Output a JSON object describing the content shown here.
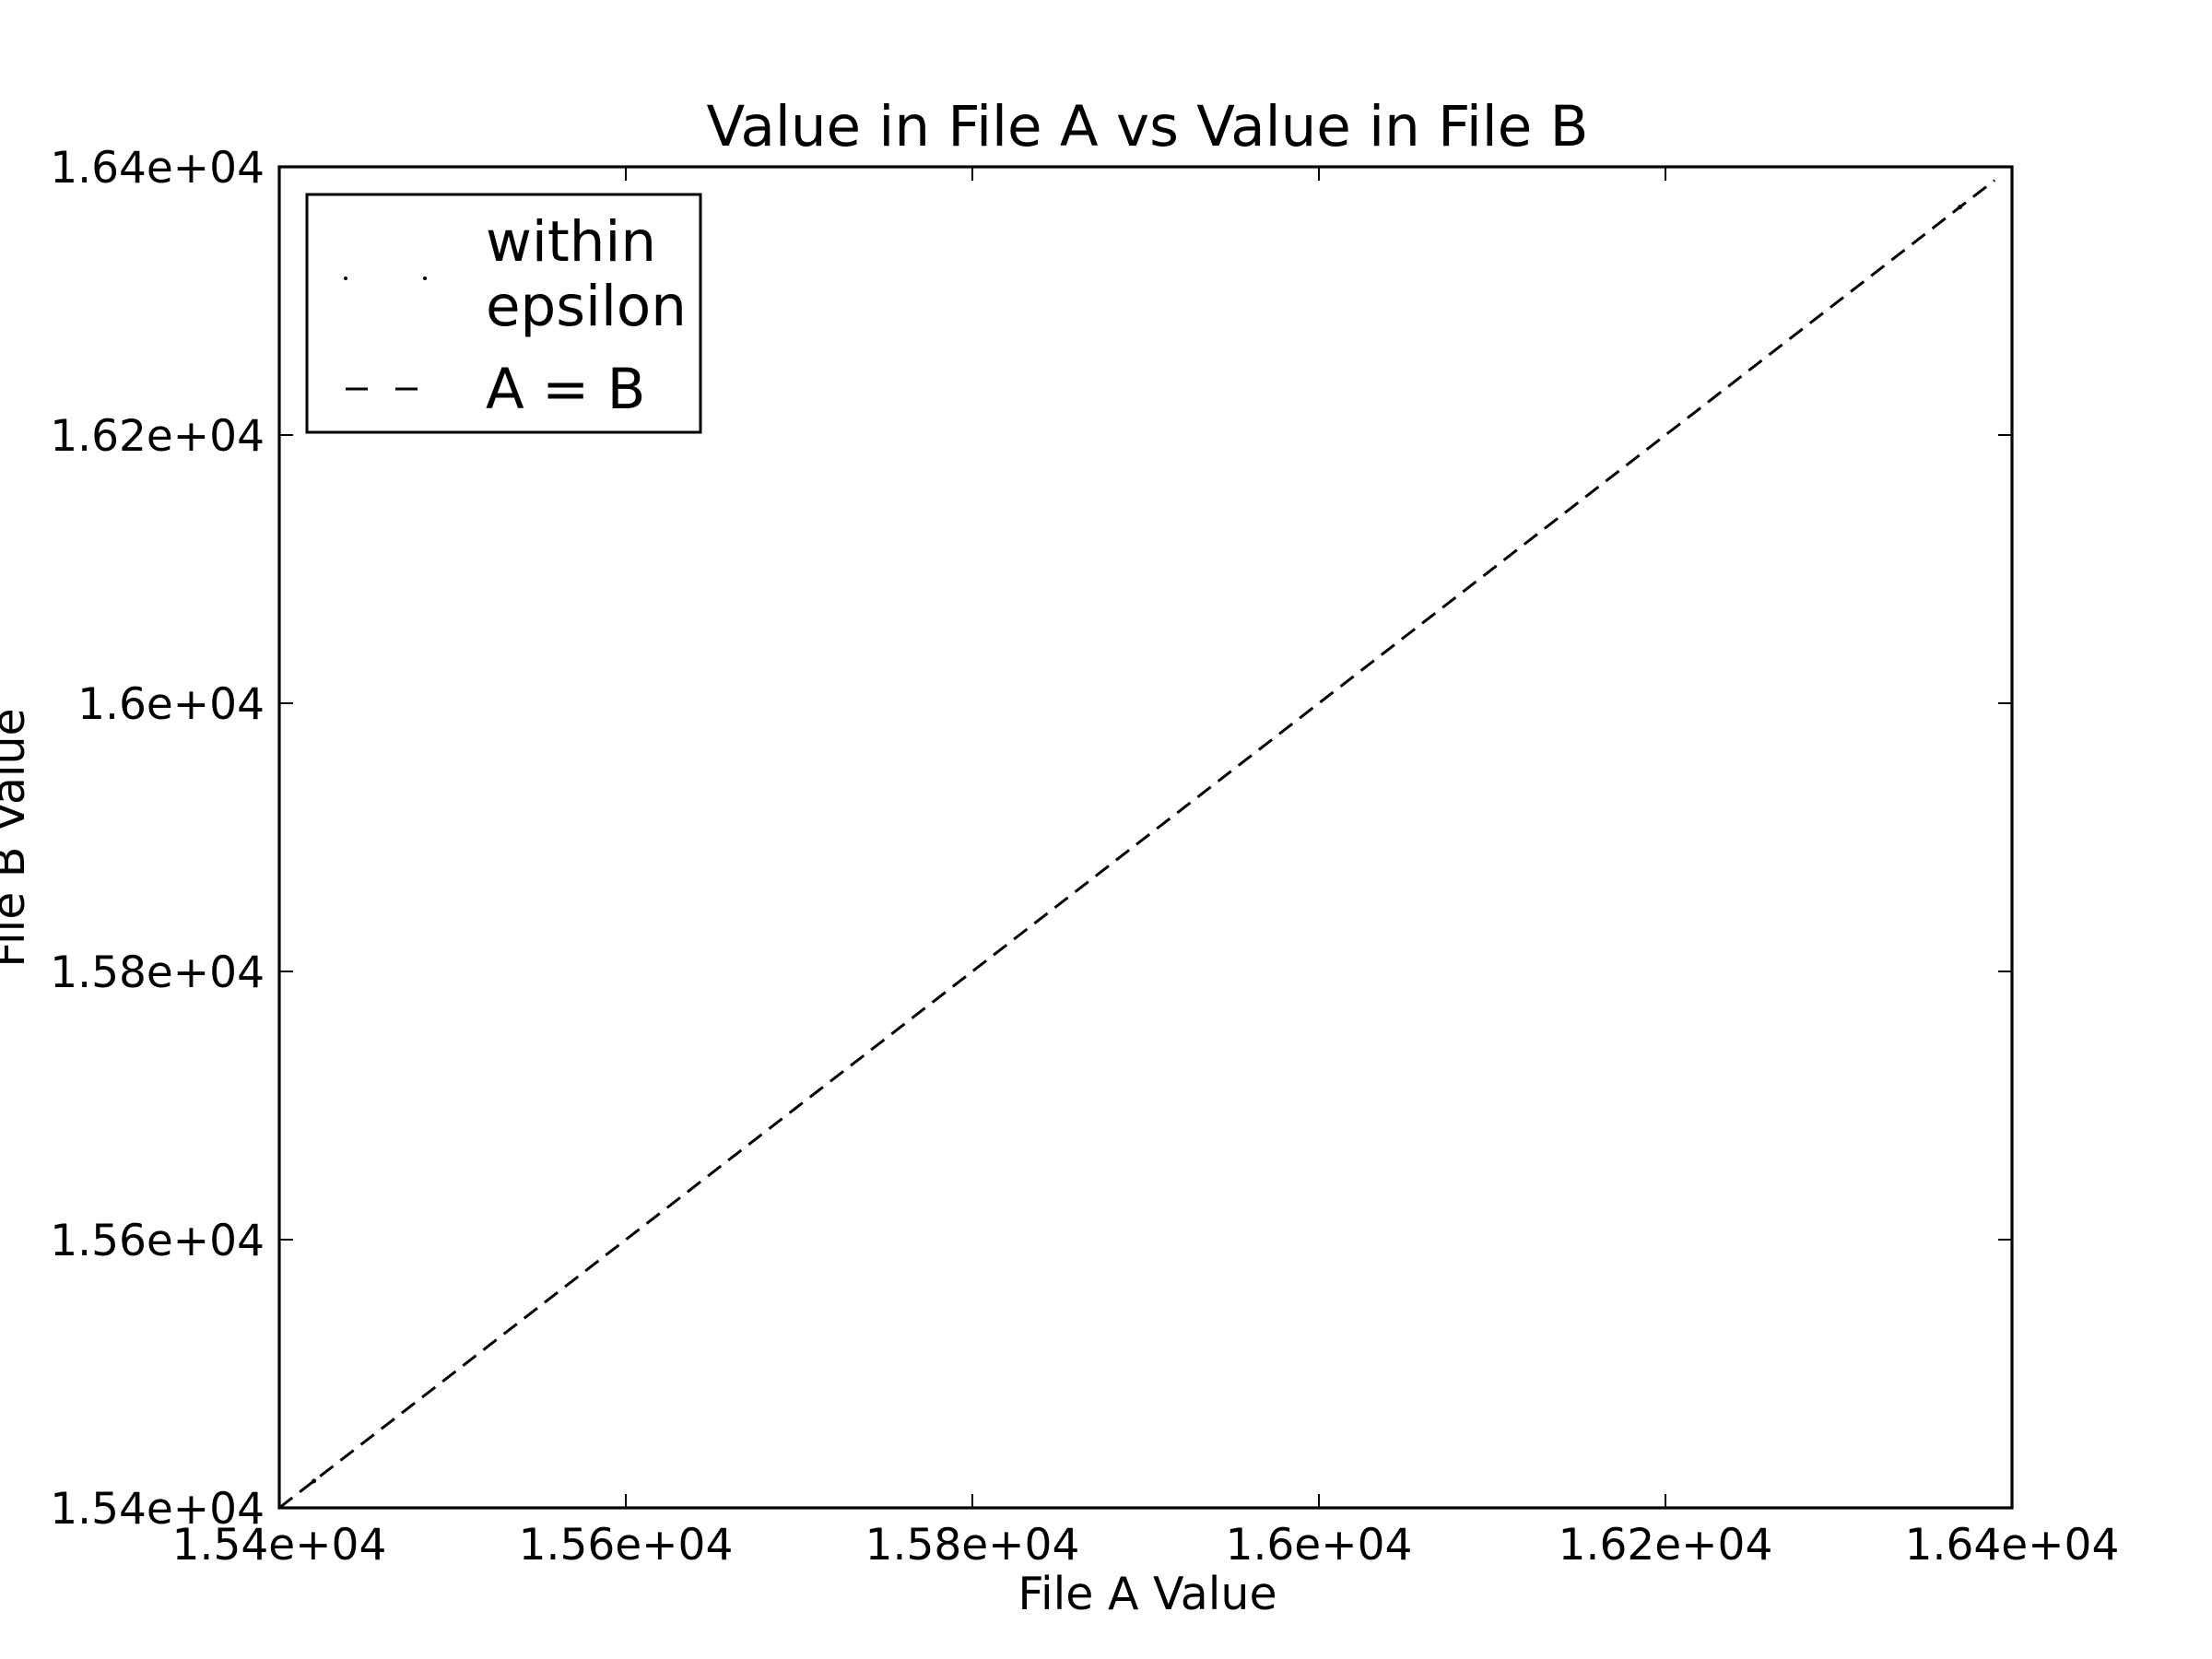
{
  "chart_data": {
    "type": "scatter",
    "title": "Value in File A vs Value in File B",
    "xlabel": "File A Value",
    "ylabel": "File B Value",
    "xlim": [
      15400,
      16400
    ],
    "ylim": [
      15400,
      16400
    ],
    "xticks": [
      15400,
      15600,
      15800,
      16000,
      16200,
      16400
    ],
    "yticks": [
      15400,
      15600,
      15800,
      16000,
      16200,
      16400
    ],
    "xtick_labels": [
      "1.54e+04",
      "1.56e+04",
      "1.58e+04",
      "1.6e+04",
      "1.62e+04",
      "1.64e+04"
    ],
    "ytick_labels": [
      "1.54e+04",
      "1.56e+04",
      "1.58e+04",
      "1.6e+04",
      "1.62e+04",
      "1.64e+04"
    ],
    "grid": false,
    "legend_position": "upper-left",
    "series": [
      {
        "name": "within epsilon",
        "style": "point markers",
        "color": "#000000",
        "points": [
          [
            15420,
            15420
          ],
          [
            16370,
            16370
          ]
        ]
      },
      {
        "name": "A = B",
        "style": "dashed line",
        "color": "#000000",
        "points": [
          [
            15400,
            15400
          ],
          [
            16390,
            16390
          ]
        ]
      }
    ],
    "legend": [
      {
        "label_lines": [
          "within",
          "epsilon"
        ],
        "marker": "points"
      },
      {
        "label_lines": [
          "A = B"
        ],
        "marker": "dashed"
      }
    ]
  }
}
